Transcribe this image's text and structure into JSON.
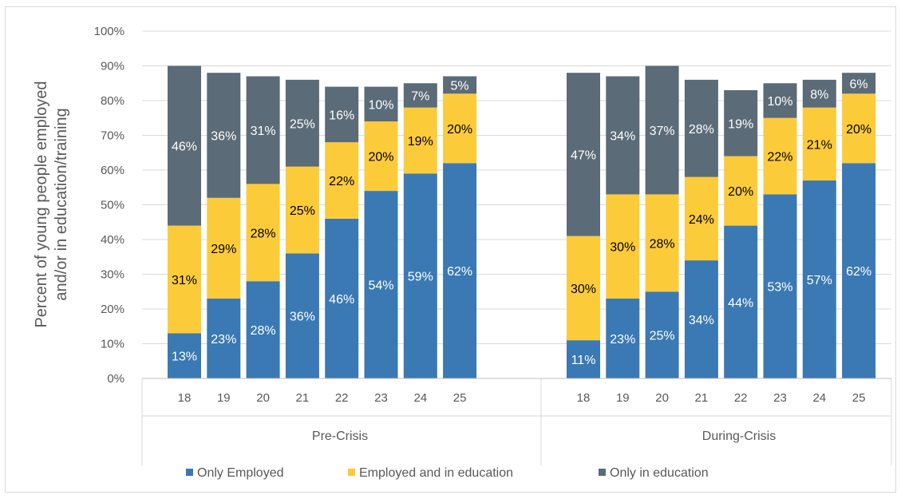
{
  "chart_data": {
    "type": "bar",
    "stacked": true,
    "ylabel": "Percent of young people employed and/or in education/training",
    "ylim": [
      0,
      1
    ],
    "yticks": [
      "0%",
      "10%",
      "20%",
      "30%",
      "40%",
      "50%",
      "60%",
      "70%",
      "80%",
      "90%",
      "100%"
    ],
    "grid": true,
    "legend_position": "bottom",
    "groups": [
      {
        "label": "Pre-Crisis",
        "categories": [
          "18",
          "19",
          "20",
          "21",
          "22",
          "23",
          "24",
          "25"
        ],
        "series": [
          {
            "name": "Only Employed",
            "color": "#3a79b4",
            "label_color": "#ffffff",
            "values": [
              0.13,
              0.23,
              0.28,
              0.36,
              0.46,
              0.54,
              0.59,
              0.62
            ],
            "labels": [
              "13%",
              "23%",
              "28%",
              "36%",
              "46%",
              "54%",
              "59%",
              "62%"
            ]
          },
          {
            "name": "Employed and in education",
            "color": "#fccb3a",
            "label_color": "#000000",
            "values": [
              0.31,
              0.29,
              0.28,
              0.25,
              0.22,
              0.2,
              0.19,
              0.2
            ],
            "labels": [
              "31%",
              "29%",
              "28%",
              "25%",
              "22%",
              "20%",
              "19%",
              "20%"
            ]
          },
          {
            "name": "Only in education",
            "color": "#5b6b77",
            "label_color": "#ffffff",
            "values": [
              0.46,
              0.36,
              0.31,
              0.25,
              0.16,
              0.1,
              0.07,
              0.05
            ],
            "labels": [
              "46%",
              "36%",
              "31%",
              "25%",
              "16%",
              "10%",
              "7%",
              "5%"
            ]
          }
        ]
      },
      {
        "label": "During-Crisis",
        "categories": [
          "18",
          "19",
          "20",
          "21",
          "22",
          "23",
          "24",
          "25"
        ],
        "series": [
          {
            "name": "Only Employed",
            "color": "#3a79b4",
            "label_color": "#ffffff",
            "values": [
              0.11,
              0.23,
              0.25,
              0.34,
              0.44,
              0.53,
              0.57,
              0.62
            ],
            "labels": [
              "11%",
              "23%",
              "25%",
              "34%",
              "44%",
              "53%",
              "57%",
              "62%"
            ]
          },
          {
            "name": "Employed and in education",
            "color": "#fccb3a",
            "label_color": "#000000",
            "values": [
              0.3,
              0.3,
              0.28,
              0.24,
              0.2,
              0.22,
              0.21,
              0.2
            ],
            "labels": [
              "30%",
              "30%",
              "28%",
              "24%",
              "20%",
              "22%",
              "21%",
              "20%"
            ]
          },
          {
            "name": "Only in education",
            "color": "#5b6b77",
            "label_color": "#ffffff",
            "values": [
              0.47,
              0.34,
              0.37,
              0.28,
              0.19,
              0.1,
              0.08,
              0.06
            ],
            "labels": [
              "47%",
              "34%",
              "37%",
              "28%",
              "19%",
              "10%",
              "8%",
              "6%"
            ]
          }
        ]
      }
    ],
    "legend": [
      {
        "name": "Only Employed",
        "color": "#3a79b4"
      },
      {
        "name": "Employed and in education",
        "color": "#fccb3a"
      },
      {
        "name": "Only in education",
        "color": "#5b6b77"
      }
    ]
  }
}
